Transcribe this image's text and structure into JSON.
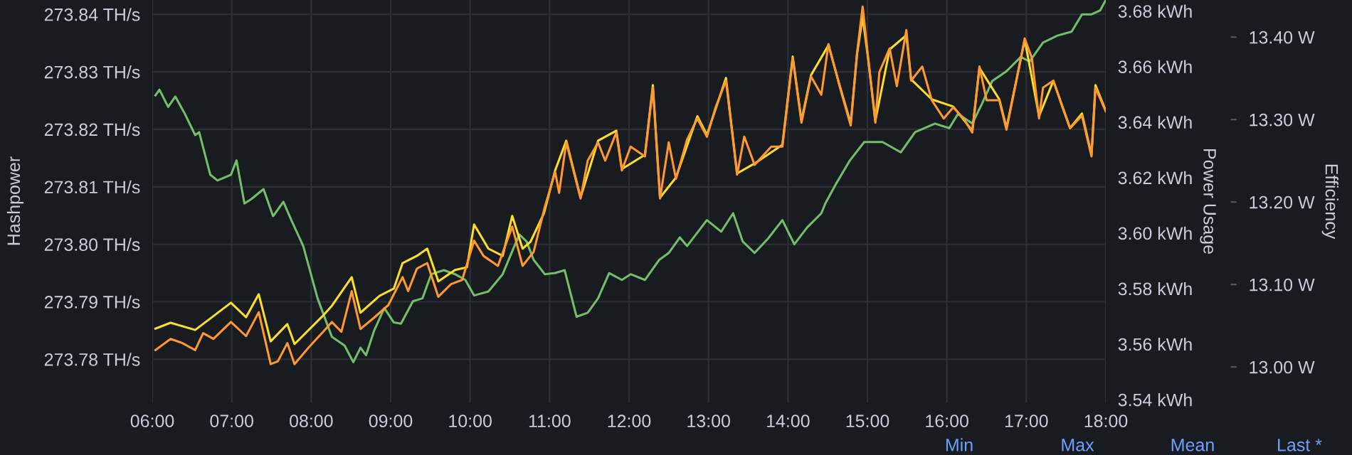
{
  "chart_data": {
    "type": "line",
    "ylabel": "Hashpower",
    "y2label": "Power Usage",
    "y3label": "Efficiency",
    "xlim": [
      6,
      18
    ],
    "xticks": [
      {
        "value": 6,
        "label": "06:00"
      },
      {
        "value": 7,
        "label": "07:00"
      },
      {
        "value": 8,
        "label": "08:00"
      },
      {
        "value": 9,
        "label": "09:00"
      },
      {
        "value": 10,
        "label": "10:00"
      },
      {
        "value": 11,
        "label": "11:00"
      },
      {
        "value": 12,
        "label": "12:00"
      },
      {
        "value": 13,
        "label": "13:00"
      },
      {
        "value": 14,
        "label": "14:00"
      },
      {
        "value": 15,
        "label": "15:00"
      },
      {
        "value": 16,
        "label": "16:00"
      },
      {
        "value": 17,
        "label": "17:00"
      },
      {
        "value": 18,
        "label": "18:00"
      }
    ],
    "ylim": [
      273.7725,
      273.8425
    ],
    "yticks": [
      {
        "value": 273.78,
        "label": "273.78 TH/s"
      },
      {
        "value": 273.79,
        "label": "273.79 TH/s"
      },
      {
        "value": 273.8,
        "label": "273.80 TH/s"
      },
      {
        "value": 273.81,
        "label": "273.81 TH/s"
      },
      {
        "value": 273.82,
        "label": "273.82 TH/s"
      },
      {
        "value": 273.83,
        "label": "273.83 TH/s"
      },
      {
        "value": 273.84,
        "label": "273.84 TH/s"
      }
    ],
    "y2lim": [
      3.539,
      3.684
    ],
    "y2ticks": [
      {
        "value": 3.54,
        "label": "3.54 kWh"
      },
      {
        "value": 3.56,
        "label": "3.56 kWh"
      },
      {
        "value": 3.58,
        "label": "3.58 kWh"
      },
      {
        "value": 3.6,
        "label": "3.60 kWh"
      },
      {
        "value": 3.62,
        "label": "3.62 kWh"
      },
      {
        "value": 3.64,
        "label": "3.64 kWh"
      },
      {
        "value": 3.66,
        "label": "3.66 kWh"
      },
      {
        "value": 3.68,
        "label": "3.68 kWh"
      }
    ],
    "y3lim": [
      12.957,
      13.445
    ],
    "y3ticks": [
      {
        "value": 13.0,
        "label": "13.00 W"
      },
      {
        "value": 13.1,
        "label": "13.10 W"
      },
      {
        "value": 13.2,
        "label": "13.20 W"
      },
      {
        "value": 13.3,
        "label": "13.30 W"
      },
      {
        "value": 13.4,
        "label": "13.40 W"
      }
    ],
    "grid": true,
    "marker": "none",
    "line_style": "solid",
    "annotations": [
      "Min",
      "Max",
      "Mean",
      "Last *"
    ],
    "series": [
      {
        "color": "#73bf69",
        "axis": "y",
        "x": [
          6.04,
          6.09,
          6.2,
          6.29,
          6.41,
          6.54,
          6.59,
          6.73,
          6.82,
          6.99,
          7.06,
          7.16,
          7.25,
          7.4,
          7.52,
          7.65,
          7.75,
          7.9,
          8.08,
          8.26,
          8.42,
          8.53,
          8.62,
          8.69,
          8.79,
          8.92,
          9.04,
          9.13,
          9.28,
          9.4,
          9.51,
          9.67,
          9.81,
          9.94,
          10.05,
          10.23,
          10.41,
          10.53,
          10.62,
          10.71,
          10.8,
          10.94,
          11.07,
          11.19,
          11.34,
          11.48,
          11.61,
          11.75,
          11.91,
          12.02,
          12.2,
          12.38,
          12.5,
          12.64,
          12.73,
          12.98,
          13.16,
          13.31,
          13.43,
          13.58,
          13.75,
          13.93,
          14.08,
          14.24,
          14.42,
          14.47,
          14.6,
          14.78,
          14.96,
          15.19,
          15.42,
          15.6,
          15.85,
          16.03,
          16.14,
          16.32,
          16.44,
          16.57,
          16.75,
          16.93,
          17.04,
          17.21,
          17.39,
          17.57,
          17.7,
          17.82,
          17.93,
          18.0
        ],
        "values": [
          273.8259,
          273.8269,
          273.8239,
          273.8257,
          273.8227,
          273.819,
          273.8195,
          273.8121,
          273.8111,
          273.8121,
          273.8146,
          273.8071,
          273.8079,
          273.8096,
          273.8049,
          273.8074,
          273.8042,
          273.7997,
          273.7906,
          273.7839,
          273.7824,
          273.7795,
          273.782,
          273.7807,
          273.7849,
          273.7889,
          273.7864,
          273.7862,
          273.7901,
          273.7906,
          273.7948,
          273.7955,
          273.7948,
          273.7938,
          273.7911,
          273.7918,
          273.7948,
          273.7988,
          273.8017,
          273.8005,
          273.7973,
          273.7948,
          273.795,
          273.7955,
          273.7874,
          273.7881,
          273.7906,
          273.795,
          273.7938,
          273.7948,
          273.7938,
          273.7973,
          273.7985,
          273.8012,
          273.7997,
          273.8042,
          273.8022,
          273.8054,
          273.8005,
          273.7985,
          273.801,
          273.8042,
          273.8,
          273.8029,
          273.8054,
          273.8071,
          273.8104,
          273.8146,
          273.8178,
          273.8178,
          273.816,
          273.8195,
          273.821,
          273.8202,
          273.8227,
          273.821,
          273.8244,
          273.8284,
          273.8301,
          273.8326,
          273.8318,
          273.8351,
          273.8363,
          273.837,
          273.84,
          273.84,
          273.8407,
          273.8425
        ]
      },
      {
        "color": "#fade2a",
        "axis": "y2",
        "x": [
          6.04,
          6.23,
          6.54,
          6.99,
          7.18,
          7.34,
          7.49,
          7.7,
          7.79,
          8.15,
          8.26,
          8.51,
          8.62,
          8.86,
          9.04,
          9.15,
          9.33,
          9.46,
          9.6,
          9.81,
          9.96,
          10.05,
          10.23,
          10.41,
          10.53,
          10.66,
          10.76,
          10.93,
          11.07,
          11.21,
          11.39,
          11.61,
          11.84,
          11.91,
          12.2,
          12.3,
          12.39,
          12.59,
          12.86,
          12.98,
          13.22,
          13.36,
          13.58,
          13.93,
          14.06,
          14.17,
          14.29,
          14.51,
          14.65,
          14.79,
          14.87,
          14.94,
          15.01,
          15.1,
          15.28,
          15.49,
          15.55,
          15.81,
          16.08,
          16.32,
          16.41,
          16.66,
          16.75,
          16.98,
          17.16,
          17.34,
          17.55,
          17.7,
          17.82,
          17.87,
          18.0
        ],
        "values": [
          3.5656,
          3.5677,
          3.5651,
          3.5749,
          3.5697,
          3.578,
          3.561,
          3.5672,
          3.56,
          3.5703,
          3.5738,
          3.5841,
          3.5713,
          3.5774,
          3.58,
          3.5892,
          3.5918,
          3.5944,
          3.5826,
          3.5867,
          3.5877,
          3.6031,
          3.5944,
          3.5918,
          3.6062,
          3.5944,
          3.5969,
          3.6072,
          3.6226,
          3.6333,
          3.6128,
          3.6333,
          3.6369,
          3.6231,
          3.6282,
          3.6533,
          3.6128,
          3.62,
          3.6421,
          3.6354,
          3.6559,
          3.6215,
          3.6251,
          3.6318,
          3.6636,
          3.6405,
          3.6569,
          3.6677,
          3.6533,
          3.6395,
          3.6646,
          3.6779,
          3.6626,
          3.6405,
          3.6662,
          3.6713,
          3.6554,
          3.6482,
          3.6456,
          3.6369,
          3.6595,
          3.6482,
          3.6379,
          3.6697,
          3.6421,
          3.6549,
          3.6379,
          3.6431,
          3.6282,
          3.6533,
          3.6441
        ]
      },
      {
        "color": "#ff9830",
        "axis": "y3",
        "x": [
          6.04,
          6.23,
          6.38,
          6.54,
          6.64,
          6.77,
          6.99,
          7.18,
          7.34,
          7.49,
          7.58,
          7.7,
          7.79,
          7.97,
          8.15,
          8.26,
          8.38,
          8.51,
          8.62,
          8.79,
          8.97,
          9.15,
          9.22,
          9.33,
          9.46,
          9.6,
          9.76,
          9.9,
          10.05,
          10.17,
          10.35,
          10.53,
          10.66,
          10.8,
          10.94,
          11.07,
          11.12,
          11.21,
          11.3,
          11.39,
          11.48,
          11.61,
          11.7,
          11.84,
          11.91,
          12.02,
          12.2,
          12.3,
          12.39,
          12.5,
          12.59,
          12.73,
          12.86,
          12.98,
          13.09,
          13.22,
          13.36,
          13.45,
          13.58,
          13.79,
          13.93,
          14.06,
          14.17,
          14.29,
          14.42,
          14.51,
          14.65,
          14.79,
          14.87,
          14.94,
          15.01,
          15.1,
          15.15,
          15.28,
          15.37,
          15.49,
          15.55,
          15.69,
          15.81,
          15.96,
          16.08,
          16.21,
          16.32,
          16.41,
          16.5,
          16.66,
          16.75,
          16.85,
          16.98,
          17.07,
          17.16,
          17.21,
          17.34,
          17.46,
          17.55,
          17.7,
          17.82,
          17.87,
          18.0
        ],
        "values": [
          13.0204,
          13.034,
          13.0289,
          13.0204,
          13.0409,
          13.034,
          13.0545,
          13.0374,
          13.0664,
          13.0034,
          13.0068,
          13.0289,
          13.0034,
          13.0238,
          13.0426,
          13.0545,
          13.0426,
          13.0919,
          13.046,
          13.0596,
          13.0749,
          13.1089,
          13.0919,
          13.1192,
          13.126,
          13.0851,
          13.1004,
          13.1055,
          13.1532,
          13.1345,
          13.1226,
          13.1702,
          13.1226,
          13.1396,
          13.194,
          13.2366,
          13.2111,
          13.2723,
          13.2383,
          13.2043,
          13.2502,
          13.2723,
          13.2502,
          13.2843,
          13.2383,
          13.2672,
          13.2553,
          13.3387,
          13.2043,
          13.2723,
          13.2281,
          13.2757,
          13.3013,
          13.2792,
          13.3149,
          13.3472,
          13.2332,
          13.2792,
          13.2451,
          13.2672,
          13.2672,
          13.3745,
          13.2962,
          13.3523,
          13.3302,
          13.3915,
          13.3404,
          13.2928,
          13.3813,
          13.437,
          13.3745,
          13.2962,
          13.3574,
          13.3864,
          13.3404,
          13.4085,
          13.3472,
          13.3643,
          13.3234,
          13.3013,
          13.3149,
          13.3013,
          13.2843,
          13.3643,
          13.3234,
          13.3234,
          13.2877,
          13.3353,
          13.3983,
          13.3745,
          13.3013,
          13.3387,
          13.3472,
          13.3132,
          13.2894,
          13.3047,
          13.2553,
          13.3387,
          13.3098
        ]
      }
    ]
  }
}
